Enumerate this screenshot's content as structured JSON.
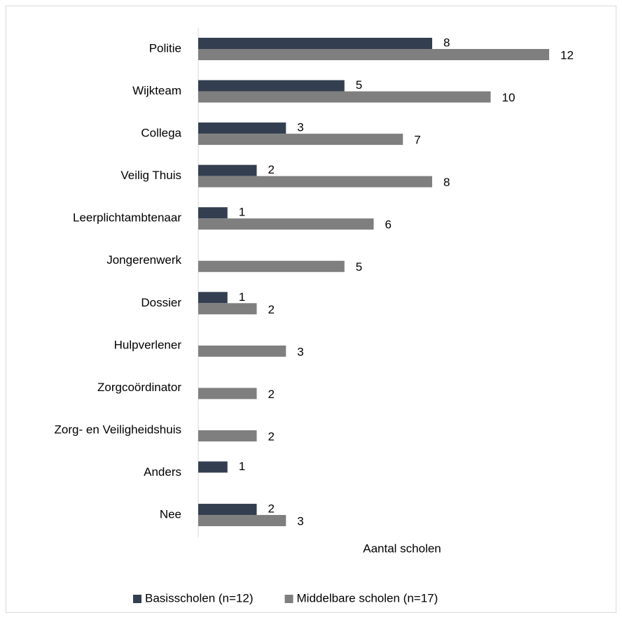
{
  "chart_data": {
    "type": "hbar",
    "categories": [
      "Politie",
      "Wijkteam",
      "Collega",
      "Veilig Thuis",
      "Leerplichtambtenaar",
      "Jongerenwerk",
      "Dossier",
      "Hulpverlener",
      "Zorgcoördinator",
      "Zorg- en Veiligheidshuis",
      "Anders",
      "Nee"
    ],
    "series": [
      {
        "name": "Basisscholen (n=12)",
        "color": "#333f50",
        "values": [
          8,
          5,
          3,
          2,
          1,
          null,
          1,
          null,
          null,
          null,
          1,
          2
        ]
      },
      {
        "name": "Middelbare scholen (n=17)",
        "color": "#7f7f7f",
        "values": [
          12,
          10,
          7,
          8,
          6,
          5,
          2,
          3,
          2,
          2,
          null,
          3
        ]
      }
    ],
    "xlabel": "Aantal scholen",
    "xlim": [
      0,
      12
    ],
    "legend": "bottom"
  }
}
